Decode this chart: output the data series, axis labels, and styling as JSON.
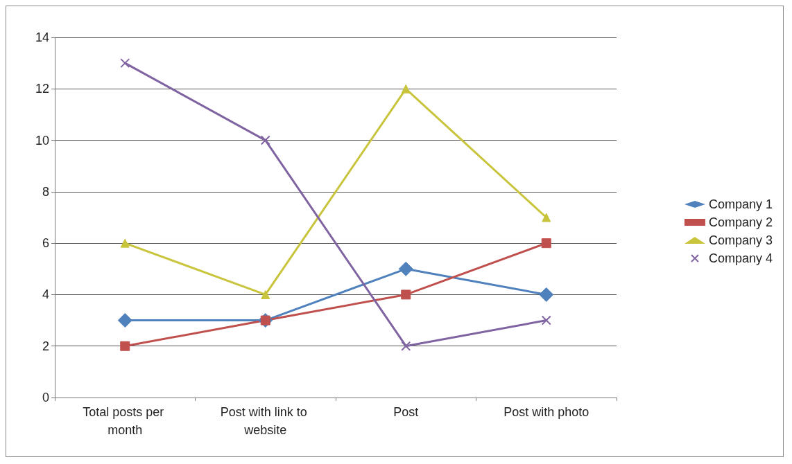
{
  "chart_data": {
    "type": "line",
    "categories": [
      "Total posts per month",
      "Post with link to website",
      "Post",
      "Post with photo"
    ],
    "series": [
      {
        "name": "Company 1",
        "color": "#4f81bd",
        "marker": "diamond",
        "values": [
          3,
          3,
          5,
          4
        ]
      },
      {
        "name": "Company 2",
        "color": "#c0504d",
        "marker": "square",
        "values": [
          2,
          3,
          4,
          6
        ]
      },
      {
        "name": "Company 3",
        "color": "#c8c43c",
        "marker": "triangle",
        "values": [
          6,
          4,
          12,
          7
        ]
      },
      {
        "name": "Company 4",
        "color": "#8064a2",
        "marker": "cross",
        "values": [
          13,
          10,
          2,
          3
        ]
      }
    ],
    "ylim": [
      0,
      14
    ],
    "yticks": [
      0,
      2,
      4,
      6,
      8,
      10,
      12,
      14
    ],
    "grid": "y",
    "legend": "right"
  }
}
